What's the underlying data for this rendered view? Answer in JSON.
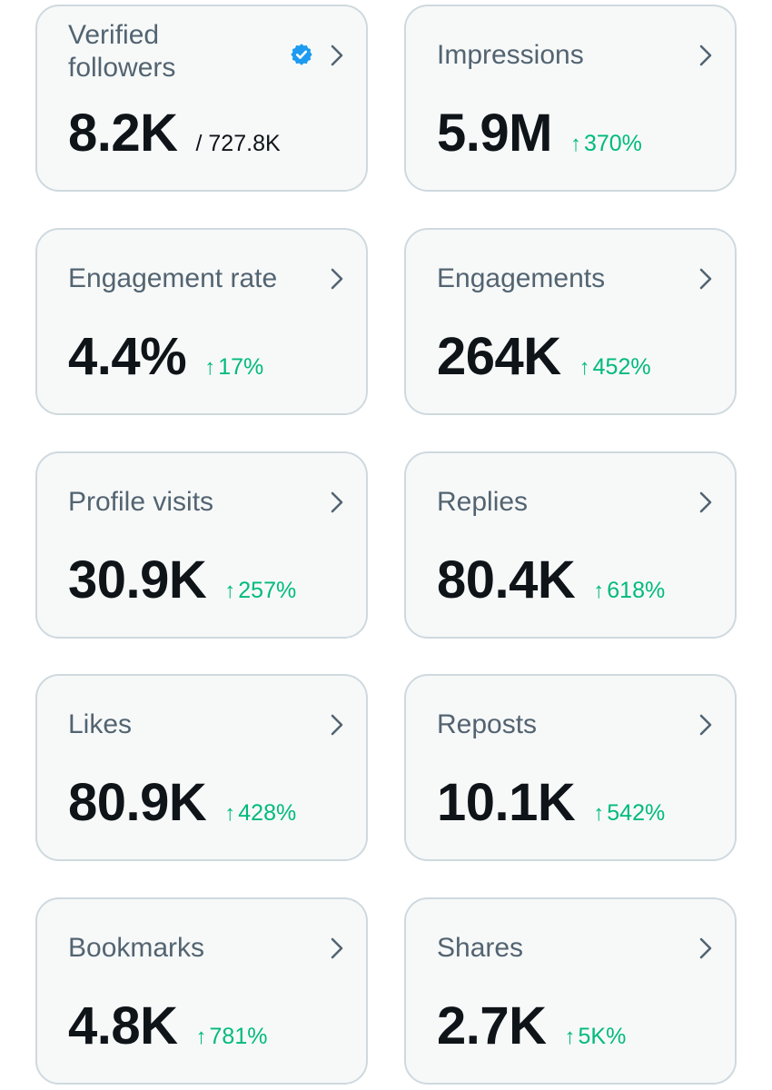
{
  "colors": {
    "card_background": "#f7f9f9",
    "card_border": "#cfd9de",
    "title_text": "#536471",
    "value_text": "#0f1419",
    "positive_change": "#00ba7c",
    "verified_badge": "#1d9bf0"
  },
  "icons": {
    "chevron": "chevron-right-icon",
    "verified": "verified-badge-icon",
    "trend": "arrow-up-icon"
  },
  "cards": [
    {
      "id": "verified-followers",
      "title": "Verified followers",
      "value": "8.2K",
      "total": "/ 727.8K"
    },
    {
      "id": "impressions",
      "title": "Impressions",
      "value": "5.9M",
      "arrow": "↑",
      "change": "370%"
    },
    {
      "id": "engagement-rate",
      "title": "Engagement rate",
      "value": "4.4%",
      "arrow": "↑",
      "change": "17%"
    },
    {
      "id": "engagements",
      "title": "Engagements",
      "value": "264K",
      "arrow": "↑",
      "change": "452%"
    },
    {
      "id": "profile-visits",
      "title": "Profile visits",
      "value": "30.9K",
      "arrow": "↑",
      "change": "257%"
    },
    {
      "id": "replies",
      "title": "Replies",
      "value": "80.4K",
      "arrow": "↑",
      "change": "618%"
    },
    {
      "id": "likes",
      "title": "Likes",
      "value": "80.9K",
      "arrow": "↑",
      "change": "428%"
    },
    {
      "id": "reposts",
      "title": "Reposts",
      "value": "10.1K",
      "arrow": "↑",
      "change": "542%"
    },
    {
      "id": "bookmarks",
      "title": "Bookmarks",
      "value": "4.8K",
      "arrow": "↑",
      "change": "781%"
    },
    {
      "id": "shares",
      "title": "Shares",
      "value": "2.7K",
      "arrow": "↑",
      "change": "5K%"
    }
  ]
}
